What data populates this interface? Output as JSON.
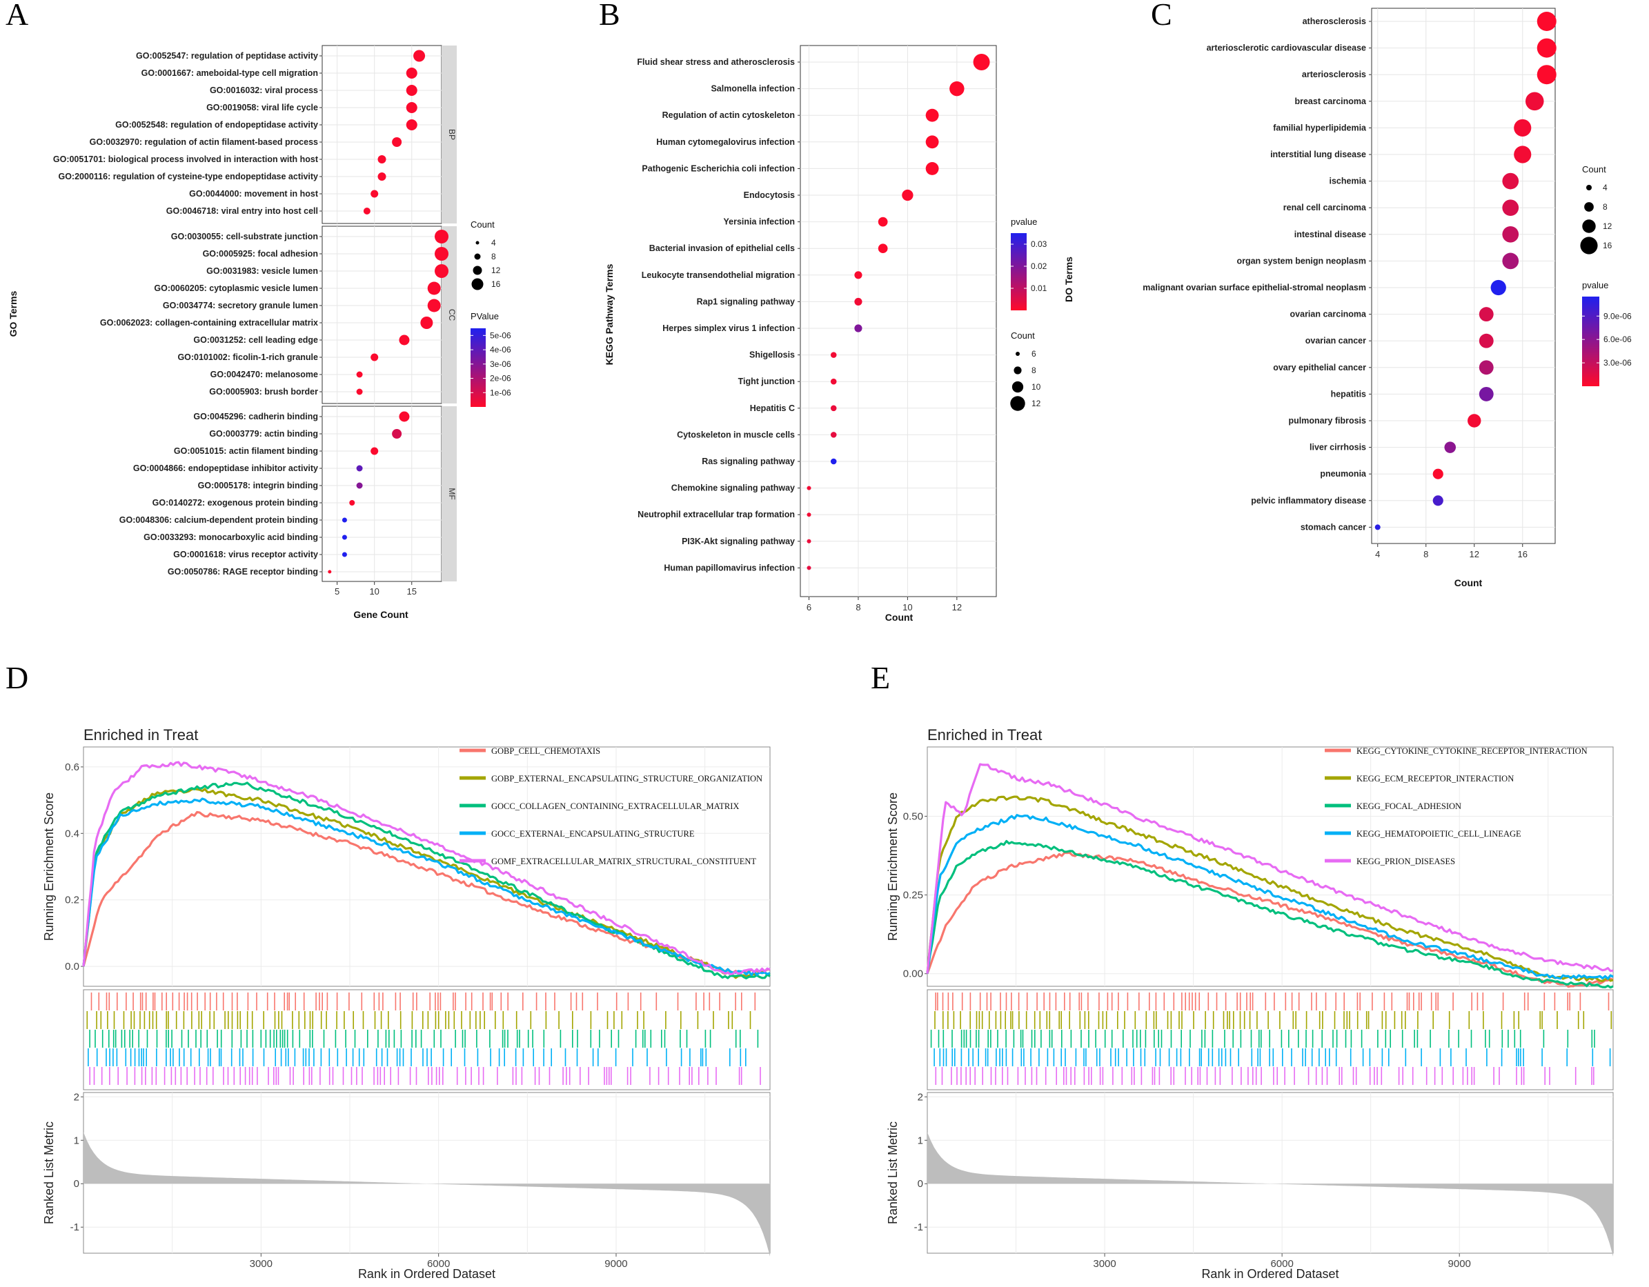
{
  "panel_labels": [
    "A",
    "B",
    "C",
    "D",
    "E"
  ],
  "chart_data": [
    {
      "id": "A",
      "type": "scatter",
      "xlabel": "Gene Count",
      "ylabel": "GO Terms",
      "xticks": [
        5,
        10,
        15
      ],
      "xlim": [
        3,
        19
      ],
      "size_legend": {
        "title": "Count",
        "values": [
          4,
          8,
          12,
          16
        ]
      },
      "color_legend": {
        "title": "PValue",
        "ticks": [
          "5e-06",
          "4e-06",
          "3e-06",
          "2e-06",
          "1e-06"
        ],
        "tick_values": [
          5e-06,
          4e-06,
          3e-06,
          2e-06,
          1e-06
        ],
        "max": 5.5e-06
      },
      "facets": [
        {
          "name": "BP",
          "terms": [
            {
              "term": "GO:0052547: regulation of peptidase activity",
              "count": 16,
              "p": 1e-07
            },
            {
              "term": "GO:0001667: ameboidal-type cell migration",
              "count": 15,
              "p": 1e-07
            },
            {
              "term": "GO:0016032: viral process",
              "count": 15,
              "p": 1e-07
            },
            {
              "term": "GO:0019058: viral life cycle",
              "count": 15,
              "p": 1e-07
            },
            {
              "term": "GO:0052548: regulation of endopeptidase activity",
              "count": 15,
              "p": 1e-07
            },
            {
              "term": "GO:0032970: regulation of actin filament-based process",
              "count": 13,
              "p": 1e-07
            },
            {
              "term": "GO:0051701: biological process involved in interaction with host",
              "count": 11,
              "p": 1e-07
            },
            {
              "term": "GO:2000116: regulation of cysteine-type endopeptidase activity",
              "count": 11,
              "p": 1e-07
            },
            {
              "term": "GO:0044000: movement in host",
              "count": 10,
              "p": 1e-07
            },
            {
              "term": "GO:0046718: viral entry into host cell",
              "count": 9,
              "p": 1e-07
            }
          ]
        },
        {
          "name": "CC",
          "terms": [
            {
              "term": "GO:0030055: cell-substrate junction",
              "count": 19,
              "p": 1e-07
            },
            {
              "term": "GO:0005925: focal adhesion",
              "count": 19,
              "p": 1e-07
            },
            {
              "term": "GO:0031983: vesicle lumen",
              "count": 19,
              "p": 1e-07
            },
            {
              "term": "GO:0060205: cytoplasmic vesicle lumen",
              "count": 18,
              "p": 1e-07
            },
            {
              "term": "GO:0034774: secretory granule lumen",
              "count": 18,
              "p": 1e-07
            },
            {
              "term": "GO:0062023: collagen-containing extracellular matrix",
              "count": 17,
              "p": 1e-07
            },
            {
              "term": "GO:0031252: cell leading edge",
              "count": 14,
              "p": 1e-07
            },
            {
              "term": "GO:0101002: ficolin-1-rich granule",
              "count": 10,
              "p": 1e-07
            },
            {
              "term": "GO:0042470: melanosome",
              "count": 8,
              "p": 1e-07
            },
            {
              "term": "GO:0005903: brush border",
              "count": 8,
              "p": 1e-07
            }
          ]
        },
        {
          "name": "MF",
          "terms": [
            {
              "term": "GO:0045296: cadherin binding",
              "count": 14,
              "p": 1e-07
            },
            {
              "term": "GO:0003779: actin binding",
              "count": 13,
              "p": 1e-06
            },
            {
              "term": "GO:0051015: actin filament binding",
              "count": 10,
              "p": 1e-07
            },
            {
              "term": "GO:0004866: endopeptidase inhibitor activity",
              "count": 8,
              "p": 4e-06
            },
            {
              "term": "GO:0005178: integrin binding",
              "count": 8,
              "p": 3e-06
            },
            {
              "term": "GO:0140272: exogenous protein binding",
              "count": 7,
              "p": 1e-07
            },
            {
              "term": "GO:0048306: calcium-dependent protein binding",
              "count": 6,
              "p": 5.5e-06
            },
            {
              "term": "GO:0033293: monocarboxylic acid binding",
              "count": 6,
              "p": 5.5e-06
            },
            {
              "term": "GO:0001618: virus receptor activity",
              "count": 6,
              "p": 5.5e-06
            },
            {
              "term": "GO:0050786: RAGE receptor binding",
              "count": 4,
              "p": 1e-07
            }
          ]
        }
      ]
    },
    {
      "id": "B",
      "type": "scatter",
      "xlabel": "Count",
      "ylabel": "KEGG Pathway Terms",
      "xticks": [
        6,
        8,
        10,
        12
      ],
      "xlim": [
        5.65,
        13.6
      ],
      "size_legend": {
        "title": "Count",
        "values": [
          6,
          8,
          10,
          12
        ]
      },
      "color_legend": {
        "title": "pvalue",
        "ticks": [
          "0.03",
          "0.02",
          "0.01"
        ],
        "tick_values": [
          0.03,
          0.02,
          0.01
        ],
        "max": 0.035
      },
      "terms": [
        {
          "term": "Fluid shear stress and atherosclerosis",
          "count": 13,
          "p": 0.0001
        },
        {
          "term": "Salmonella infection",
          "count": 12,
          "p": 0.0001
        },
        {
          "term": "Regulation of actin cytoskeleton",
          "count": 11,
          "p": 0.0002
        },
        {
          "term": "Human cytomegalovirus infection",
          "count": 11,
          "p": 0.0002
        },
        {
          "term": "Pathogenic Escherichia coli infection",
          "count": 11,
          "p": 0.0002
        },
        {
          "term": "Endocytosis",
          "count": 10,
          "p": 0.0005
        },
        {
          "term": "Yersinia infection",
          "count": 9,
          "p": 0.0003
        },
        {
          "term": "Bacterial invasion of epithelial cells",
          "count": 9,
          "p": 0.0003
        },
        {
          "term": "Leukocyte transendothelial migration",
          "count": 8,
          "p": 0.001
        },
        {
          "term": "Rap1 signaling pathway",
          "count": 8,
          "p": 0.002
        },
        {
          "term": "Herpes simplex virus 1 infection",
          "count": 8,
          "p": 0.02
        },
        {
          "term": "Shigellosis",
          "count": 7,
          "p": 0.002
        },
        {
          "term": "Tight junction",
          "count": 7,
          "p": 0.002
        },
        {
          "term": "Hepatitis C",
          "count": 7,
          "p": 0.003
        },
        {
          "term": "Cytoskeleton in muscle cells",
          "count": 7,
          "p": 0.004
        },
        {
          "term": "Ras signaling pathway",
          "count": 7,
          "p": 0.035
        },
        {
          "term": "Chemokine signaling pathway",
          "count": 6,
          "p": 0.002
        },
        {
          "term": "Neutrophil extracellular trap formation",
          "count": 6,
          "p": 0.002
        },
        {
          "term": "PI3K-Akt signaling pathway",
          "count": 6,
          "p": 0.003
        },
        {
          "term": "Human papillomavirus infection",
          "count": 6,
          "p": 0.004
        }
      ]
    },
    {
      "id": "C",
      "type": "scatter",
      "xlabel": "Count",
      "ylabel": "DO Terms",
      "xticks": [
        4,
        8,
        12,
        16
      ],
      "xlim": [
        3.5,
        18.7
      ],
      "size_legend": {
        "title": "Count",
        "values": [
          4,
          8,
          12,
          16
        ]
      },
      "color_legend": {
        "title": "pvalue",
        "ticks": [
          "9.0e-06",
          "6.0e-06",
          "3.0e-06"
        ],
        "tick_values": [
          9e-06,
          6e-06,
          3e-06
        ],
        "max": 1.15e-05
      },
      "terms": [
        {
          "term": "atherosclerosis",
          "count": 18,
          "p": 1e-07
        },
        {
          "term": "arteriosclerotic cardiovascular disease",
          "count": 18,
          "p": 1e-07
        },
        {
          "term": "arteriosclerosis",
          "count": 18,
          "p": 1e-07
        },
        {
          "term": "breast carcinoma",
          "count": 17,
          "p": 8e-07
        },
        {
          "term": "familial hyperlipidemia",
          "count": 16,
          "p": 5e-07
        },
        {
          "term": "interstitial lung disease",
          "count": 16,
          "p": 6e-07
        },
        {
          "term": "ischemia",
          "count": 15,
          "p": 1.5e-06
        },
        {
          "term": "renal cell carcinoma",
          "count": 15,
          "p": 2e-06
        },
        {
          "term": "intestinal disease",
          "count": 15,
          "p": 3e-06
        },
        {
          "term": "organ system benign neoplasm",
          "count": 15,
          "p": 4.5e-06
        },
        {
          "term": "malignant ovarian surface epithelial-stromal neoplasm",
          "count": 14,
          "p": 1.15e-05
        },
        {
          "term": "ovarian carcinoma",
          "count": 13,
          "p": 2e-06
        },
        {
          "term": "ovarian cancer",
          "count": 13,
          "p": 2e-06
        },
        {
          "term": "ovary epithelial cancer",
          "count": 13,
          "p": 4e-06
        },
        {
          "term": "hepatitis",
          "count": 13,
          "p": 7e-06
        },
        {
          "term": "pulmonary fibrosis",
          "count": 12,
          "p": 6e-07
        },
        {
          "term": "liver cirrhosis",
          "count": 10,
          "p": 6e-06
        },
        {
          "term": "pneumonia",
          "count": 9,
          "p": 2e-07
        },
        {
          "term": "pelvic inflammatory disease",
          "count": 9,
          "p": 9.5e-06
        },
        {
          "term": "stomach cancer",
          "count": 4,
          "p": 1.1e-05
        }
      ]
    },
    {
      "id": "D",
      "type": "line",
      "title": "Enriched in Treat",
      "ylabel": "Running Enrichment Score",
      "ylabel2": "Ranked List Metric",
      "xlabel": "Rank in Ordered Dataset",
      "xticks": [
        3000,
        6000,
        9000
      ],
      "yticks": [
        "0.0",
        "0.2",
        "0.4",
        "0.6"
      ],
      "ytick_values": [
        0,
        0.2,
        0.4,
        0.6
      ],
      "ylim": [
        -0.06,
        0.66
      ],
      "y2ticks": [
        "2",
        "1",
        "0",
        "-1"
      ],
      "y2tick_values": [
        2,
        1,
        0,
        -1
      ],
      "y2lim": [
        -1.6,
        2.1
      ],
      "xlim": [
        0,
        11600
      ],
      "series": [
        {
          "name": "GOBP_CELL_CHEMOTAXIS",
          "color": "#F8766D",
          "seed": 11,
          "x": [
            0,
            300,
            800,
            1300,
            1900,
            3000,
            4500,
            6000,
            7500,
            9000,
            10300,
            11000,
            11600
          ],
          "y": [
            0,
            0.2,
            0.3,
            0.4,
            0.46,
            0.44,
            0.37,
            0.28,
            0.18,
            0.09,
            0.02,
            -0.02,
            -0.01
          ]
        },
        {
          "name": "GOBP_EXTERNAL_ENCAPSULATING_STRUCTURE_ORGANIZATION",
          "color": "#A3A500",
          "seed": 23,
          "x": [
            0,
            200,
            600,
            1200,
            2000,
            3000,
            4500,
            6000,
            7500,
            9000,
            10300,
            11000,
            11600
          ],
          "y": [
            0,
            0.33,
            0.45,
            0.52,
            0.53,
            0.5,
            0.42,
            0.32,
            0.21,
            0.11,
            0.02,
            -0.03,
            -0.02
          ]
        },
        {
          "name": "GOCC_COLLAGEN_CONTAINING_EXTRACELLULAR_MATRIX",
          "color": "#00BF7D",
          "seed": 37,
          "x": [
            0,
            200,
            600,
            1200,
            2000,
            2700,
            4000,
            5500,
            7000,
            8500,
            10100,
            10800,
            11600
          ],
          "y": [
            0,
            0.34,
            0.46,
            0.51,
            0.54,
            0.55,
            0.48,
            0.38,
            0.26,
            0.14,
            0.02,
            -0.03,
            -0.03
          ]
        },
        {
          "name": "GOCC_EXTERNAL_ENCAPSULATING_STRUCTURE",
          "color": "#00B0F6",
          "seed": 41,
          "x": [
            0,
            200,
            600,
            1200,
            2000,
            3000,
            4500,
            6000,
            7500,
            9000,
            10400,
            11000,
            11600
          ],
          "y": [
            0,
            0.32,
            0.45,
            0.49,
            0.5,
            0.48,
            0.4,
            0.31,
            0.2,
            0.1,
            0.01,
            -0.02,
            -0.02
          ]
        },
        {
          "name": "GOMF_EXTRACELLULAR_MATRIX_STRUCTURAL_CONSTITUENT",
          "color": "#E76BF3",
          "seed": 53,
          "x": [
            0,
            200,
            500,
            1000,
            1600,
            2600,
            4000,
            5500,
            7000,
            8500,
            10000,
            10800,
            11600
          ],
          "y": [
            0,
            0.38,
            0.52,
            0.6,
            0.61,
            0.58,
            0.5,
            0.4,
            0.29,
            0.17,
            0.05,
            -0.02,
            -0.01
          ]
        }
      ]
    },
    {
      "id": "E",
      "type": "line",
      "title": "Enriched in Treat",
      "ylabel": "Running Enrichment Score",
      "ylabel2": "Ranked List Metric",
      "xlabel": "Rank in Ordered Dataset",
      "xticks": [
        3000,
        6000,
        9000
      ],
      "yticks": [
        "0.00",
        "0.25",
        "0.50"
      ],
      "ytick_values": [
        0,
        0.25,
        0.5
      ],
      "ylim": [
        -0.04,
        0.72
      ],
      "y2ticks": [
        "2",
        "1",
        "0",
        "-1"
      ],
      "y2tick_values": [
        2,
        1,
        0,
        -1
      ],
      "y2lim": [
        -1.6,
        2.1
      ],
      "xlim": [
        0,
        11600
      ],
      "series": [
        {
          "name": "KEGG_CYTOKINE_CYTOKINE_RECEPTOR_INTERACTION",
          "color": "#F8766D",
          "seed": 61,
          "x": [
            0,
            300,
            800,
            1400,
            2300,
            3500,
            5000,
            6500,
            8000,
            9500,
            10300,
            10900,
            11600
          ],
          "y": [
            0,
            0.15,
            0.28,
            0.34,
            0.38,
            0.36,
            0.27,
            0.19,
            0.1,
            0.03,
            -0.02,
            -0.04,
            -0.02
          ]
        },
        {
          "name": "KEGG_ECM_RECEPTOR_INTERACTION",
          "color": "#A3A500",
          "seed": 67,
          "x": [
            0,
            200,
            500,
            900,
            1400,
            2000,
            3500,
            5000,
            6500,
            8000,
            9500,
            10500,
            11600
          ],
          "y": [
            0,
            0.36,
            0.5,
            0.55,
            0.56,
            0.55,
            0.45,
            0.35,
            0.24,
            0.14,
            0.06,
            -0.01,
            -0.02
          ]
        },
        {
          "name": "KEGG_FOCAL_ADHESION",
          "color": "#00BF7D",
          "seed": 71,
          "x": [
            0,
            200,
            500,
            900,
            1400,
            2100,
            3500,
            5000,
            6500,
            8000,
            9500,
            10200,
            11600
          ],
          "y": [
            0,
            0.24,
            0.34,
            0.39,
            0.42,
            0.4,
            0.34,
            0.25,
            0.16,
            0.08,
            0.02,
            -0.02,
            -0.04
          ]
        },
        {
          "name": "KEGG_HEMATOPOIETIC_CELL_LINEAGE",
          "color": "#00B0F6",
          "seed": 79,
          "x": [
            0,
            200,
            500,
            900,
            1500,
            2000,
            3500,
            5000,
            6500,
            8000,
            9500,
            10500,
            11600
          ],
          "y": [
            0,
            0.3,
            0.42,
            0.46,
            0.5,
            0.49,
            0.41,
            0.31,
            0.21,
            0.11,
            0.04,
            -0.01,
            -0.01
          ]
        },
        {
          "name": "KEGG_PRION_DISEASES",
          "color": "#E76BF3",
          "seed": 83,
          "x": [
            0,
            300,
            600,
            900,
            1500,
            2100,
            3500,
            5000,
            6500,
            8000,
            9500,
            10500,
            11600
          ],
          "y": [
            0,
            0.55,
            0.5,
            0.67,
            0.62,
            0.6,
            0.5,
            0.4,
            0.29,
            0.19,
            0.09,
            0.04,
            0.01
          ]
        }
      ]
    }
  ]
}
